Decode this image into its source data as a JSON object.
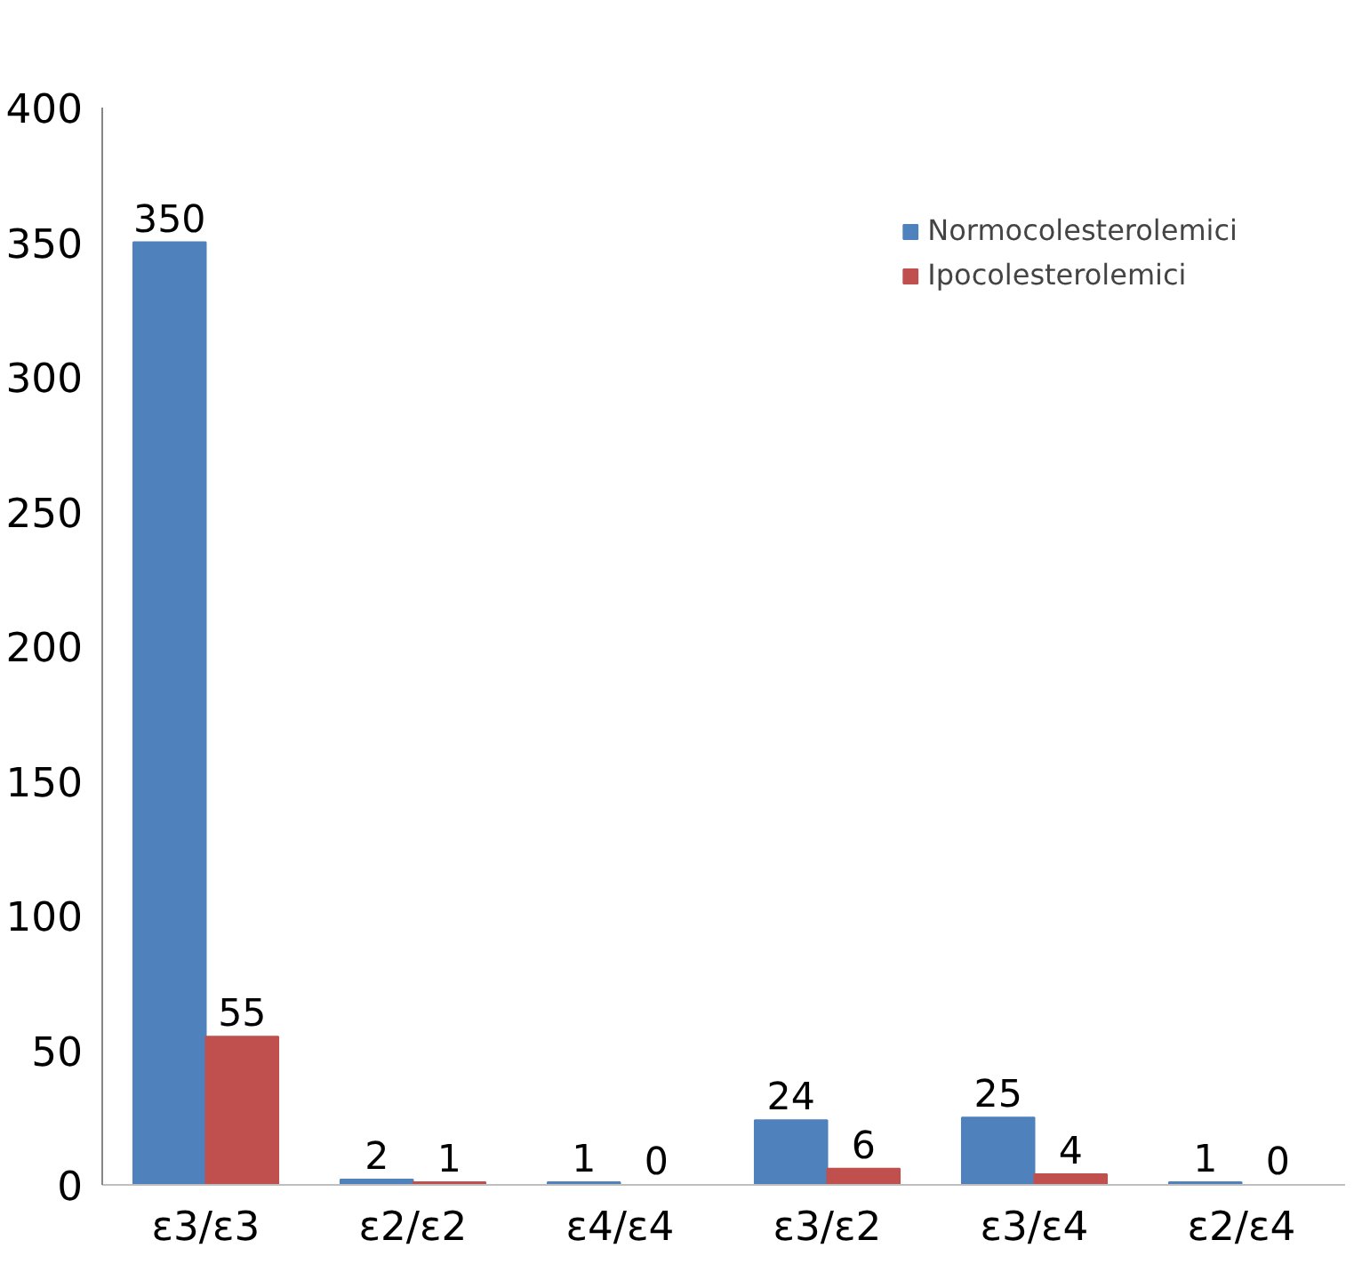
{
  "chart_data": {
    "type": "bar",
    "categories": [
      "ε3/ε3",
      "ε2/ε2",
      "ε4/ε4",
      "ε3/ε2",
      "ε3/ε4",
      "ε2/ε4"
    ],
    "series": [
      {
        "name": "Normocolesterolemici",
        "color": "#4f81bd",
        "values": [
          350,
          2,
          1,
          24,
          25,
          1
        ]
      },
      {
        "name": "Ipocolesterolemici",
        "color": "#c0504d",
        "values": [
          55,
          1,
          0,
          6,
          4,
          0
        ]
      }
    ],
    "ylim": [
      0,
      400
    ],
    "yticks": [
      0,
      50,
      100,
      150,
      200,
      250,
      300,
      350,
      400
    ],
    "grid": false,
    "legend": "top right",
    "data_labels": true
  }
}
